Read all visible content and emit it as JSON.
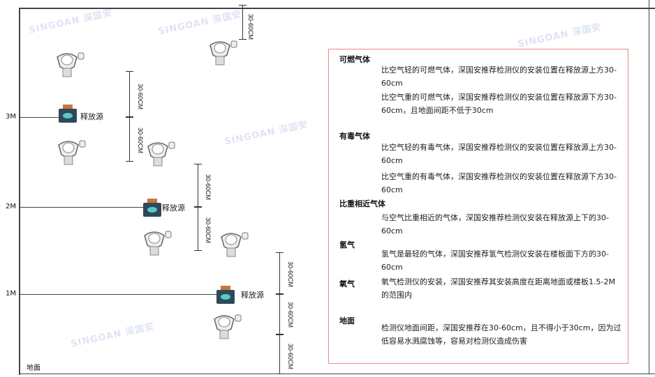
{
  "levels": [
    "3M",
    "2M",
    "1M"
  ],
  "floor_label": "地面",
  "source_label": "释放源",
  "dimension_label": "30-60CM",
  "watermark": "SINGOAN 深国安",
  "colors": {
    "frame": "#444444",
    "text_box_border": "#ee8888",
    "source_body": "#2e4a5a",
    "source_cap": "#c8763a"
  },
  "info": {
    "flammable": {
      "title": "可燃气体",
      "lines": [
        "比空气轻的可燃气体，深国安推荐检测仪的安装位置在释放源上方30-60cm",
        "比空气重的可燃气体，深国安推荐检测仪的安装位置在释放源下方30-60cm，且地面间距不低于30cm"
      ]
    },
    "toxic": {
      "title": "有毒气体",
      "lines": [
        "比空气轻的有毒气体，深国安推荐检测仪的安装位置在释放源上方30-60cm",
        "比空气重的有毒气体，深国安推荐检测仪的安装位置在释放源下方30-60cm"
      ]
    },
    "similar": {
      "title": "比重相近气体",
      "lines": [
        "与空气比重相近的气体，深国安推荐检测仪安装在释放源上下的30-60cm"
      ]
    },
    "hydrogen": {
      "title": "氢气",
      "lines": [
        "氢气是最轻的气体，深国安推荐氢气检测仪安装在楼板面下方的30-60cm"
      ]
    },
    "oxygen": {
      "title": "氧气",
      "lines": [
        "氧气检测仪的安装，深国安推荐其安装高度在距离地面或楼板1.5-2M的范围内"
      ]
    },
    "ground": {
      "title": "地面",
      "lines": [
        "检测仪地面间距，深国安推荐在30-60cm，且不得小于30cm，因为过低容易水溅腐蚀等，容易对检测仪造成伤害"
      ]
    }
  }
}
